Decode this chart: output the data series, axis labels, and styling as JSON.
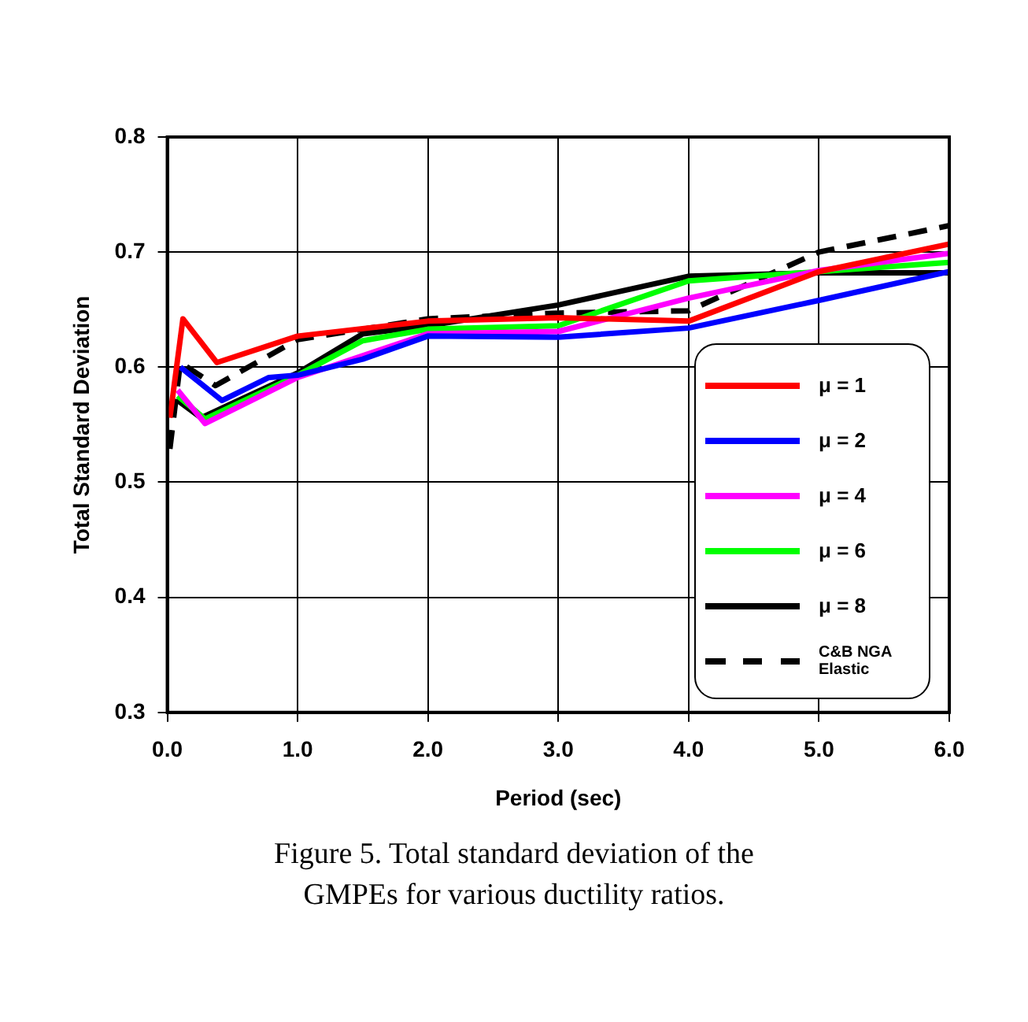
{
  "chart_data": {
    "type": "line",
    "xlabel": "Period (sec)",
    "ylabel": "Total Standard Deviation",
    "xlim": [
      0,
      6
    ],
    "xticks": [
      {
        "value": 0,
        "label": "0.0"
      },
      {
        "value": 1,
        "label": "1.0"
      },
      {
        "value": 2,
        "label": "2.0"
      },
      {
        "value": 3,
        "label": "3.0"
      },
      {
        "value": 4,
        "label": "4.0"
      },
      {
        "value": 5,
        "label": "5.0"
      },
      {
        "value": 6,
        "label": "6.0"
      }
    ],
    "ylim": [
      0.3,
      0.8
    ],
    "yticks": [
      0.3,
      0.4,
      0.5,
      0.6,
      0.7,
      0.8
    ],
    "grid": true,
    "legend": "bottom right",
    "marker": "none",
    "series": [
      {
        "name": "μ = 1",
        "color": "#ff0000",
        "x": [
          0.02,
          0.12,
          0.38,
          1,
          2,
          3,
          4,
          5,
          6
        ],
        "values": [
          0.556,
          0.642,
          0.604,
          0.627,
          0.64,
          0.643,
          0.64,
          0.683,
          0.707
        ]
      },
      {
        "name": "μ = 2",
        "color": "#0000ff",
        "x": [
          0.1,
          0.42,
          0.78,
          1,
          1.5,
          2,
          3,
          4,
          5,
          6
        ],
        "values": [
          0.6,
          0.571,
          0.591,
          0.593,
          0.607,
          0.627,
          0.626,
          0.634,
          0.658,
          0.683
        ]
      },
      {
        "name": "μ = 4",
        "color": "#ff00ff",
        "x": [
          0.08,
          0.29,
          1,
          2,
          3,
          4,
          5,
          6
        ],
        "values": [
          0.58,
          0.551,
          0.591,
          0.629,
          0.631,
          0.66,
          0.684,
          0.699
        ]
      },
      {
        "name": "μ = 6",
        "color": "#00ff00",
        "x": [
          0.08,
          0.29,
          1,
          1.5,
          2,
          3,
          4,
          5,
          6
        ],
        "values": [
          0.575,
          0.555,
          0.593,
          0.623,
          0.633,
          0.636,
          0.675,
          0.683,
          0.691
        ]
      },
      {
        "name": "μ = 8",
        "color": "#000000",
        "x": [
          0.08,
          0.26,
          1,
          1.5,
          2,
          3,
          4,
          5,
          6
        ],
        "values": [
          0.571,
          0.556,
          0.595,
          0.629,
          0.636,
          0.654,
          0.679,
          0.682,
          0.682
        ]
      },
      {
        "name": "C&B NGA Elastic",
        "color": "#000000",
        "line_style": "dashed",
        "x": [
          0.02,
          0.1,
          0.37,
          1,
          2,
          3,
          4,
          5,
          6
        ],
        "values": [
          0.529,
          0.604,
          0.584,
          0.624,
          0.642,
          0.647,
          0.649,
          0.7,
          0.723
        ]
      }
    ],
    "annotations": [
      "Figure 5. Total standard deviation of the GMPEs for various ductility ratios."
    ]
  }
}
